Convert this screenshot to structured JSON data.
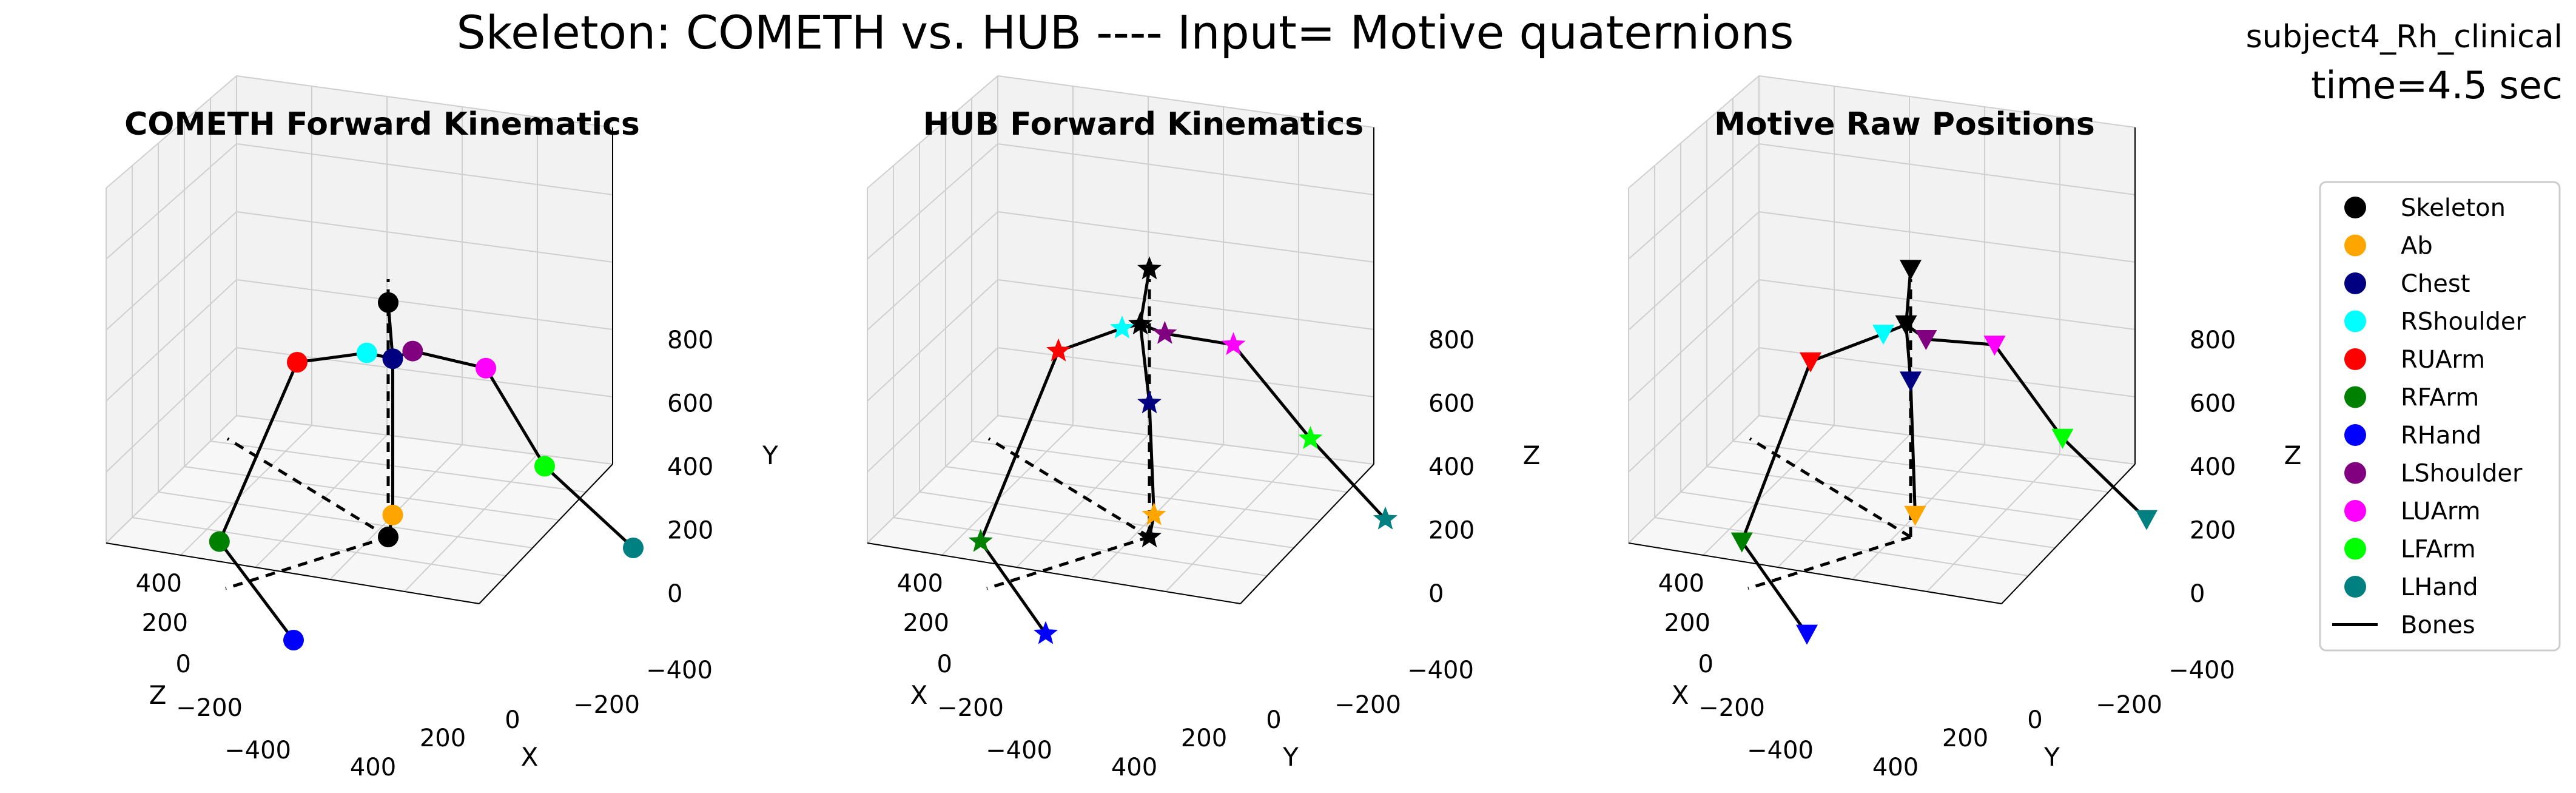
{
  "figure": {
    "title": "Skeleton: COMETH vs. HUB ---- Input= Motive quaternions",
    "subject": "subject4_Rh_clinical",
    "time": "time=4.5 sec"
  },
  "legend": {
    "placement": "right",
    "entries": [
      {
        "label": "Skeleton",
        "color": "#000000",
        "kind": "marker"
      },
      {
        "label": "Ab",
        "color": "#FFA500",
        "kind": "marker"
      },
      {
        "label": "Chest",
        "color": "#000080",
        "kind": "marker"
      },
      {
        "label": "RShoulder",
        "color": "#00FFFF",
        "kind": "marker"
      },
      {
        "label": "RUArm",
        "color": "#FF0000",
        "kind": "marker"
      },
      {
        "label": "RFArm",
        "color": "#008000",
        "kind": "marker"
      },
      {
        "label": "RHand",
        "color": "#0000FF",
        "kind": "marker"
      },
      {
        "label": "LShoulder",
        "color": "#800080",
        "kind": "marker"
      },
      {
        "label": "LUArm",
        "color": "#FF00FF",
        "kind": "marker"
      },
      {
        "label": "LFArm",
        "color": "#00FF00",
        "kind": "marker"
      },
      {
        "label": "LHand",
        "color": "#008080",
        "kind": "marker"
      },
      {
        "label": "Bones",
        "color": "#000000",
        "kind": "line"
      }
    ]
  },
  "chart_data": [
    {
      "type": "scatter",
      "title": "COMETH Forward Kinematics",
      "marker": "circle",
      "axis_labels": {
        "left": "Z",
        "bottom": "X",
        "vertical": "Y"
      },
      "left_ticks": [
        "400",
        "200",
        "0",
        "−200",
        "−400"
      ],
      "bottom_ticks": [
        "400",
        "200",
        "0",
        "−200",
        "−400"
      ],
      "vertical_ticks": [
        "0",
        "200",
        "400",
        "600",
        "800"
      ],
      "joints": [
        {
          "name": "Skeleton",
          "color": "#000000",
          "position": [
            0,
            0,
            0
          ]
        },
        {
          "name": "Ab",
          "color": "#FFA500",
          "position": [
            0,
            40,
            -10
          ]
        },
        {
          "name": "Chest",
          "color": "#000080",
          "position": [
            0,
            320,
            -10
          ]
        },
        {
          "name": "Skeleton",
          "color": "#000000",
          "position": [
            0,
            420,
            0
          ]
        },
        {
          "name": "RShoulder",
          "color": "#00FFFF",
          "position": [
            10,
            330,
            40
          ]
        },
        {
          "name": "RUArm",
          "color": "#FF0000",
          "position": [
            0,
            300,
            200
          ]
        },
        {
          "name": "RFArm",
          "color": "#008000",
          "position": [
            160,
            20,
            260
          ]
        },
        {
          "name": "RHand",
          "color": "#0000FF",
          "position": [
            300,
            -100,
            0
          ]
        },
        {
          "name": "LShoulder",
          "color": "#800080",
          "position": [
            -20,
            330,
            -40
          ]
        },
        {
          "name": "LUArm",
          "color": "#FF00FF",
          "position": [
            -50,
            300,
            -180
          ]
        },
        {
          "name": "LFArm",
          "color": "#00FF00",
          "position": [
            -150,
            100,
            -240
          ]
        },
        {
          "name": "LHand",
          "color": "#008080",
          "position": [
            -200,
            -50,
            -400
          ]
        }
      ],
      "bones": [
        [
          0,
          1
        ],
        [
          1,
          2
        ],
        [
          2,
          3
        ],
        [
          2,
          4
        ],
        [
          4,
          5
        ],
        [
          5,
          6
        ],
        [
          6,
          7
        ],
        [
          2,
          8
        ],
        [
          8,
          9
        ],
        [
          9,
          10
        ],
        [
          10,
          11
        ]
      ]
    },
    {
      "type": "scatter",
      "title": "HUB Forward Kinematics",
      "marker": "star",
      "axis_labels": {
        "left": "X",
        "bottom": "Y",
        "vertical": "Z"
      },
      "left_ticks": [
        "400",
        "200",
        "0",
        "−200",
        "−400"
      ],
      "bottom_ticks": [
        "400",
        "200",
        "0",
        "−200",
        "−400"
      ],
      "vertical_ticks": [
        "0",
        "200",
        "400",
        "600",
        "800"
      ],
      "joints": [
        {
          "name": "Skeleton",
          "color": "#000000",
          "position": [
            0,
            0,
            0
          ]
        },
        {
          "name": "Ab",
          "color": "#FFA500",
          "position": [
            0,
            40,
            -10
          ]
        },
        {
          "name": "Chest",
          "color": "#000080",
          "position": [
            0,
            240,
            0
          ]
        },
        {
          "name": "Skeleton",
          "color": "#000000",
          "position": [
            0,
            380,
            20
          ]
        },
        {
          "name": "Skeleton",
          "color": "#000000",
          "position": [
            0,
            480,
            0
          ]
        },
        {
          "name": "RShoulder",
          "color": "#00FFFF",
          "position": [
            0,
            370,
            60
          ]
        },
        {
          "name": "RUArm",
          "color": "#FF0000",
          "position": [
            0,
            320,
            200
          ]
        },
        {
          "name": "RFArm",
          "color": "#008000",
          "position": [
            160,
            20,
            260
          ]
        },
        {
          "name": "RHand",
          "color": "#0000FF",
          "position": [
            300,
            -90,
            20
          ]
        },
        {
          "name": "LShoulder",
          "color": "#800080",
          "position": [
            -20,
            360,
            -20
          ]
        },
        {
          "name": "LUArm",
          "color": "#FF00FF",
          "position": [
            -50,
            340,
            -150
          ]
        },
        {
          "name": "LFArm",
          "color": "#00FF00",
          "position": [
            -150,
            150,
            -250
          ]
        },
        {
          "name": "LHand",
          "color": "#008080",
          "position": [
            -200,
            0,
            -380
          ]
        }
      ],
      "bones": [
        [
          0,
          1
        ],
        [
          1,
          2
        ],
        [
          2,
          3
        ],
        [
          3,
          4
        ],
        [
          3,
          5
        ],
        [
          5,
          6
        ],
        [
          6,
          7
        ],
        [
          7,
          8
        ],
        [
          3,
          9
        ],
        [
          9,
          10
        ],
        [
          10,
          11
        ],
        [
          11,
          12
        ]
      ]
    },
    {
      "type": "scatter",
      "title": "Motive Raw Positions",
      "marker": "triangle-down",
      "axis_labels": {
        "left": "X",
        "bottom": "Y",
        "vertical": "Z"
      },
      "left_ticks": [
        "400",
        "200",
        "0",
        "−200",
        "−400"
      ],
      "bottom_ticks": [
        "400",
        "200",
        "0",
        "−200",
        "−400"
      ],
      "vertical_ticks": [
        "0",
        "200",
        "400",
        "600",
        "800"
      ],
      "joints": [
        {
          "name": "Ab",
          "color": "#FFA500",
          "position": [
            0,
            40,
            -10
          ]
        },
        {
          "name": "Chest",
          "color": "#000080",
          "position": [
            0,
            280,
            0
          ]
        },
        {
          "name": "Skeleton",
          "color": "#000000",
          "position": [
            0,
            380,
            10
          ]
        },
        {
          "name": "Skeleton",
          "color": "#000000",
          "position": [
            0,
            480,
            0
          ]
        },
        {
          "name": "RShoulder",
          "color": "#00FFFF",
          "position": [
            0,
            360,
            60
          ]
        },
        {
          "name": "RUArm",
          "color": "#FF0000",
          "position": [
            0,
            300,
            220
          ]
        },
        {
          "name": "RFArm",
          "color": "#008000",
          "position": [
            160,
            20,
            260
          ]
        },
        {
          "name": "RHand",
          "color": "#0000FF",
          "position": [
            300,
            -90,
            20
          ]
        },
        {
          "name": "LShoulder",
          "color": "#800080",
          "position": [
            -20,
            350,
            -20
          ]
        },
        {
          "name": "LUArm",
          "color": "#FF00FF",
          "position": [
            -50,
            340,
            -150
          ]
        },
        {
          "name": "LFArm",
          "color": "#00FF00",
          "position": [
            -150,
            150,
            -230
          ]
        },
        {
          "name": "LHand",
          "color": "#008080",
          "position": [
            -200,
            0,
            -380
          ]
        }
      ],
      "bones": [
        [
          0,
          1
        ],
        [
          1,
          2
        ],
        [
          2,
          3
        ],
        [
          2,
          4
        ],
        [
          4,
          5
        ],
        [
          5,
          6
        ],
        [
          6,
          7
        ],
        [
          2,
          8
        ],
        [
          8,
          9
        ],
        [
          9,
          10
        ],
        [
          10,
          11
        ]
      ]
    }
  ]
}
